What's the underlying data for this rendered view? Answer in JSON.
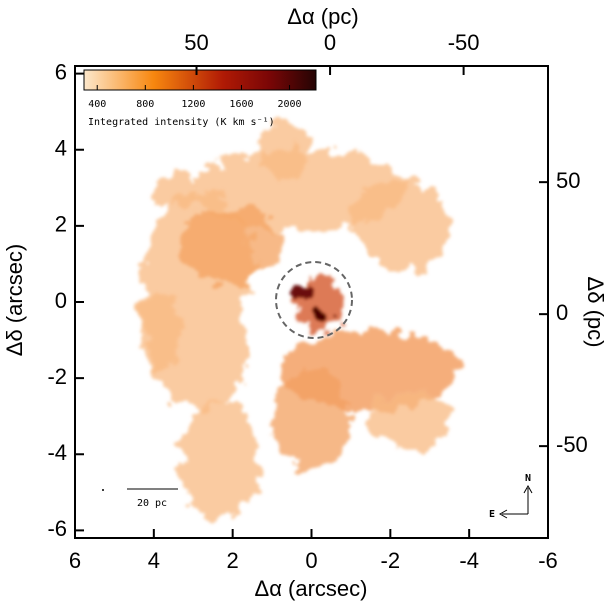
{
  "chart_data": {
    "type": "image",
    "xlabel": "Δα (arcsec)",
    "ylabel": "Δδ (arcsec)",
    "x2label": "Δα (pc)",
    "y2label": "Δδ (pc)",
    "xlim": [
      6,
      -6
    ],
    "xticks": [
      6,
      4,
      2,
      0,
      -2,
      -4,
      -6
    ],
    "ylim": [
      -6.2,
      6.2
    ],
    "yticks": [
      -6,
      -4,
      -2,
      0,
      2,
      4,
      6
    ],
    "x2lim": [
      95.5,
      -81.6
    ],
    "x2ticks": [
      50,
      0,
      -50
    ],
    "y2lim": [
      -84.8,
      94
    ],
    "y2ticks": [
      -50,
      0,
      50
    ],
    "colorbar": {
      "label": "Integrated intensity (K km s⁻¹)",
      "lim": [
        290,
        2220
      ],
      "ticks": [
        400,
        800,
        1200,
        1600,
        2000
      ]
    },
    "annotations": {
      "scale_bar": "20 pc",
      "north": "N",
      "east": "E"
    }
  }
}
